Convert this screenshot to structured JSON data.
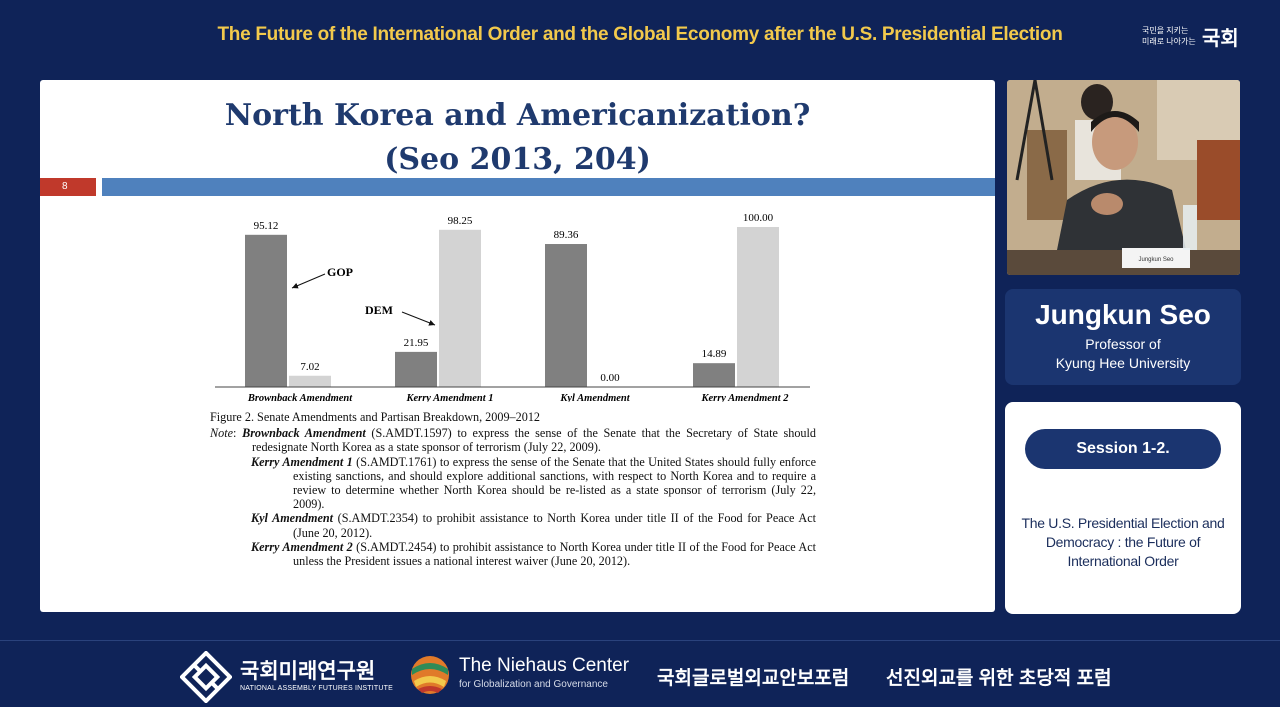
{
  "header": {
    "title": "The Future of the International Order and the Global Economy after the U.S. Presidential Election",
    "logo_line1": "국민을 지키는",
    "logo_line2": "미래로 나아가는",
    "logo_big": "국회"
  },
  "slide": {
    "title_line1": "North Korea and Americanization?",
    "title_line2": "(Seo 2013, 204)",
    "page_number": "8",
    "figure_caption": "Figure 2.    Senate Amendments and Partisan Breakdown, 2009–2012",
    "note_label": "Note",
    "notes": [
      {
        "name": "Brownback Amendment",
        "text": " (S.AMDT.1597) to express the sense of the Senate that the Secretary of State should redesignate North Korea as a state sponsor of terrorism (July 22, 2009)."
      },
      {
        "name": "Kerry Amendment 1",
        "text": " (S.AMDT.1761) to express the sense of the Senate that the United States should fully enforce existing sanctions, and should explore additional sanctions, with respect to North Korea and to require a review to determine whether North Korea should be re-listed as a state sponsor of terrorism (July 22, 2009)."
      },
      {
        "name": "Kyl Amendment",
        "text": " (S.AMDT.2354) to prohibit assistance to North Korea under title II of the Food for Peace Act (June 20, 2012)."
      },
      {
        "name": "Kerry Amendment 2",
        "text": " (S.AMDT.2454) to prohibit assistance to North Korea under title II of the Food for Peace Act unless the President issues a national interest waiver (June 20, 2012)."
      }
    ]
  },
  "chart_data": {
    "type": "bar",
    "categories": [
      "Brownback Amendment",
      "Kerry Amendment 1",
      "Kyl Amendment",
      "Kerry Amendment 2"
    ],
    "series": [
      {
        "name": "GOP",
        "values": [
          95.12,
          21.95,
          89.36,
          14.89
        ],
        "color": "#808080"
      },
      {
        "name": "DEM",
        "values": [
          7.02,
          98.25,
          0.0,
          100.0
        ],
        "color": "#d3d3d3"
      }
    ],
    "value_labels": [
      [
        "95.12",
        "21.95",
        "89.36",
        "14.89"
      ],
      [
        "7.02",
        "98.25",
        "0.00",
        "100.00"
      ]
    ],
    "ylim": [
      0,
      100
    ],
    "annotations": [
      "GOP",
      "DEM"
    ]
  },
  "speaker": {
    "name": "Jungkun Seo",
    "title_line1": "Professor of",
    "title_line2": "Kyung Hee University",
    "nameplate": "Jungkun Seo"
  },
  "session": {
    "label": "Session 1-2.",
    "desc_line1": "The U.S. Presidential Election and",
    "desc_line2": "Democracy : the Future of",
    "desc_line3": "International Order"
  },
  "footer": {
    "nafi_name": "국회미래연구원",
    "nafi_sub": "NATIONAL ASSEMBLY FUTURES INSTITUTE",
    "niehaus_name": "The Niehaus Center",
    "niehaus_sub": "for Globalization and Governance",
    "forum1": "국회글로벌외교안보포럼",
    "forum2": "선진외교를 위한 초당적 포럼"
  }
}
